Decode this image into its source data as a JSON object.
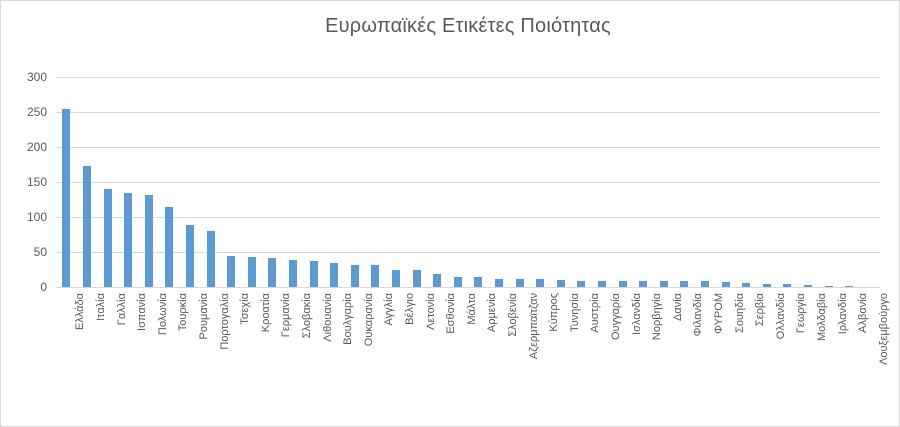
{
  "chart": {
    "colors": {
      "bar_fill": "#5b9bd5",
      "gridline": "#d9d9d9",
      "axis_text": "#595959",
      "title_text": "#595959",
      "frame_border": "#d9d9d9",
      "background": "#ffffff"
    }
  },
  "chart_data": {
    "type": "bar",
    "title": "Ευρωπαϊκές Ετικέτες Ποιότητας",
    "xlabel": "",
    "ylabel": "",
    "categories": [
      "Ελλάδα",
      "Ιταλία",
      "Γαλλία",
      "Ισπανία",
      "Πολωνία",
      "Τουρκία",
      "Ρουμανία",
      "Πορτογαλία",
      "Τσεχία",
      "Κροατία",
      "Γερμανία",
      "Σλοβακία",
      "Λιθουανία",
      "Βουλγαρία",
      "Ουκαρανία",
      "Αγγλία",
      "Βέλγιο",
      "Λετονία",
      "Εσθονία",
      "Μάλτα",
      "Αρμενία",
      "Σλοβενία",
      "Αζερμπαϊτζαν",
      "Κύπρος",
      "Τυνησία",
      "Αυστρία",
      "Ουγγαρία",
      "Ισλανδία",
      "Νορβηγία",
      "Δανία",
      "Φιλανδία",
      "ΦΥΡΟΜ",
      "Σουηδία",
      "Σερβία",
      "Ολλανδία",
      "Γεωργία",
      "Μολδαβία",
      "Ιρλανδία",
      "Αλβανία",
      "Λουξεμβούργο"
    ],
    "values": [
      255,
      173,
      140,
      134,
      131,
      115,
      88,
      80,
      45,
      43,
      41,
      38,
      37,
      34,
      32,
      31,
      25,
      24,
      18,
      15,
      14,
      12,
      11,
      11,
      10,
      9,
      9,
      9,
      9,
      8,
      8,
      8,
      7,
      6,
      5,
      4,
      3,
      1,
      1,
      0
    ],
    "ylim": [
      0,
      300
    ],
    "yticks": [
      0,
      50,
      100,
      150,
      200,
      250,
      300
    ],
    "grid": true,
    "legend": false,
    "bar_orientation": "vertical",
    "x_tick_rotation": 90
  }
}
